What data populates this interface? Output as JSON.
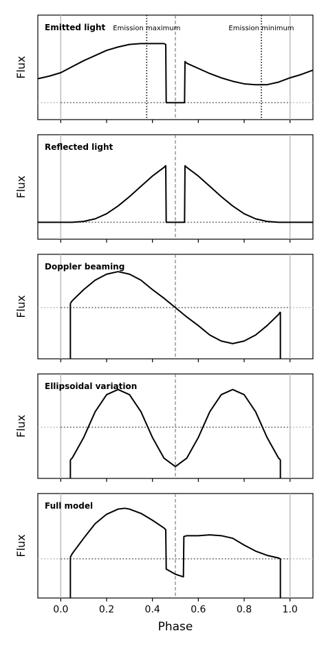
{
  "chart_data": [
    {
      "type": "line",
      "title": "Emitted light",
      "ylabel": "Flux",
      "annotations": [
        {
          "text": "Emission maximum",
          "x": 0.375
        },
        {
          "text": "Emission minimum",
          "x": 0.875
        }
      ],
      "xlim": [
        -0.1,
        1.1
      ],
      "ylim": [
        0,
        1
      ],
      "baseline": 0.1,
      "series": [
        {
          "x": [
            -0.1,
            -0.05,
            0.0,
            0.05,
            0.1,
            0.15,
            0.2,
            0.25,
            0.3,
            0.35,
            0.4,
            0.45,
            0.458,
            0.46,
            0.54,
            0.542,
            0.55,
            0.6,
            0.65,
            0.7,
            0.75,
            0.8,
            0.85,
            0.9,
            0.95,
            1.0,
            1.05,
            1.1
          ],
          "y": [
            0.38,
            0.41,
            0.45,
            0.52,
            0.59,
            0.65,
            0.71,
            0.75,
            0.78,
            0.79,
            0.79,
            0.79,
            0.78,
            0.1,
            0.1,
            0.58,
            0.56,
            0.5,
            0.44,
            0.39,
            0.35,
            0.32,
            0.31,
            0.31,
            0.34,
            0.39,
            0.43,
            0.48
          ]
        }
      ]
    },
    {
      "type": "line",
      "title": "Reflected light",
      "ylabel": "Flux",
      "xlim": [
        -0.1,
        1.1
      ],
      "ylim": [
        0,
        1
      ],
      "baseline": 0.1,
      "series": [
        {
          "x": [
            -0.1,
            0.0,
            0.05,
            0.1,
            0.15,
            0.2,
            0.25,
            0.3,
            0.35,
            0.4,
            0.45,
            0.458,
            0.46,
            0.54,
            0.542,
            0.55,
            0.6,
            0.65,
            0.7,
            0.75,
            0.8,
            0.85,
            0.9,
            0.95,
            1.0,
            1.1
          ],
          "y": [
            0.1,
            0.1,
            0.1,
            0.11,
            0.14,
            0.2,
            0.29,
            0.4,
            0.52,
            0.64,
            0.74,
            0.76,
            0.1,
            0.1,
            0.76,
            0.74,
            0.64,
            0.52,
            0.4,
            0.29,
            0.2,
            0.14,
            0.11,
            0.1,
            0.1,
            0.1
          ]
        }
      ]
    },
    {
      "type": "line",
      "title": "Doppler beaming",
      "ylabel": "Flux",
      "xlim": [
        -0.1,
        1.1
      ],
      "ylim": [
        0,
        1
      ],
      "baseline": 0.5,
      "series": [
        {
          "x": [
            0.042,
            0.05,
            0.1,
            0.15,
            0.2,
            0.25,
            0.3,
            0.35,
            0.4,
            0.45,
            0.5,
            0.55,
            0.6,
            0.65,
            0.7,
            0.75,
            0.8,
            0.85,
            0.9,
            0.95,
            0.958
          ],
          "y": [
            0.55,
            0.58,
            0.71,
            0.82,
            0.89,
            0.92,
            0.89,
            0.82,
            0.71,
            0.61,
            0.5,
            0.39,
            0.29,
            0.18,
            0.11,
            0.08,
            0.11,
            0.18,
            0.29,
            0.42,
            0.45
          ]
        }
      ]
    },
    {
      "type": "line",
      "title": "Ellipsoidal variation",
      "ylabel": "Flux",
      "xlim": [
        -0.1,
        1.1
      ],
      "ylim": [
        0,
        1
      ],
      "baseline": 0.5,
      "series": [
        {
          "x": [
            0.042,
            0.05,
            0.1,
            0.15,
            0.2,
            0.25,
            0.3,
            0.35,
            0.4,
            0.45,
            0.5,
            0.55,
            0.6,
            0.65,
            0.7,
            0.75,
            0.8,
            0.85,
            0.9,
            0.95,
            0.958
          ],
          "y": [
            0.12,
            0.14,
            0.38,
            0.68,
            0.88,
            0.94,
            0.88,
            0.68,
            0.38,
            0.14,
            0.04,
            0.14,
            0.38,
            0.68,
            0.88,
            0.94,
            0.88,
            0.68,
            0.38,
            0.14,
            0.12
          ]
        }
      ]
    },
    {
      "type": "line",
      "title": "Full model",
      "ylabel": "Flux",
      "xlabel": "Phase",
      "xlim": [
        -0.1,
        1.1
      ],
      "ylim": [
        0,
        1
      ],
      "baseline": 0.36,
      "series": [
        {
          "x": [
            0.042,
            0.05,
            0.1,
            0.15,
            0.2,
            0.25,
            0.28,
            0.3,
            0.35,
            0.4,
            0.45,
            0.458,
            0.46,
            0.5,
            0.535,
            0.537,
            0.55,
            0.6,
            0.65,
            0.7,
            0.75,
            0.8,
            0.85,
            0.9,
            0.95,
            0.958
          ],
          "y": [
            0.38,
            0.42,
            0.6,
            0.77,
            0.88,
            0.94,
            0.95,
            0.94,
            0.89,
            0.81,
            0.72,
            0.7,
            0.24,
            0.18,
            0.15,
            0.62,
            0.63,
            0.63,
            0.64,
            0.63,
            0.6,
            0.52,
            0.45,
            0.4,
            0.37,
            0.36
          ]
        }
      ]
    }
  ],
  "axes": {
    "xticks": [
      0.0,
      0.2,
      0.4,
      0.6,
      0.8,
      1.0
    ],
    "xtick_labels": [
      "0.0",
      "0.2",
      "0.4",
      "0.6",
      "0.8",
      "1.0"
    ],
    "xlabel": "Phase",
    "ylabel": "Flux"
  },
  "colors": {
    "series": "#000000",
    "extended": "#bdbdbd",
    "marker_line": "#666666",
    "frame": "#000000"
  }
}
